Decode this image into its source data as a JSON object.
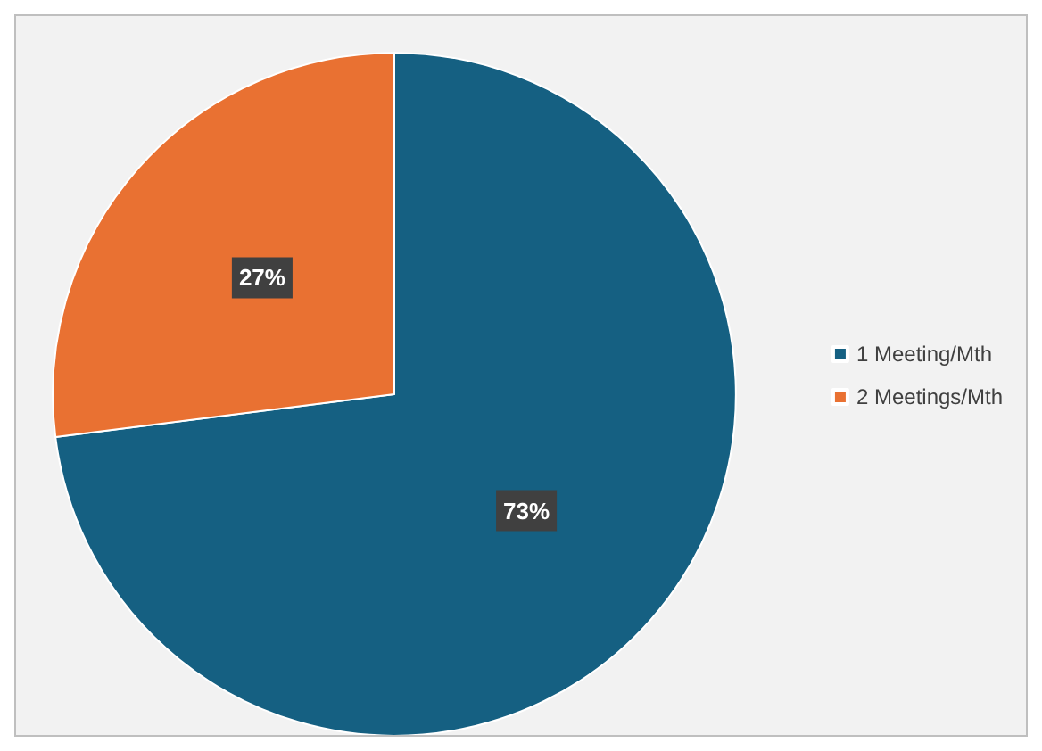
{
  "chart_data": {
    "type": "pie",
    "categories": [
      "1 Meeting/Mth",
      "2 Meetings/Mth"
    ],
    "values": [
      73,
      27
    ],
    "colors": [
      "#156082",
      "#e97132"
    ],
    "value_labels": [
      "73%",
      "27%"
    ],
    "legend": "right"
  }
}
